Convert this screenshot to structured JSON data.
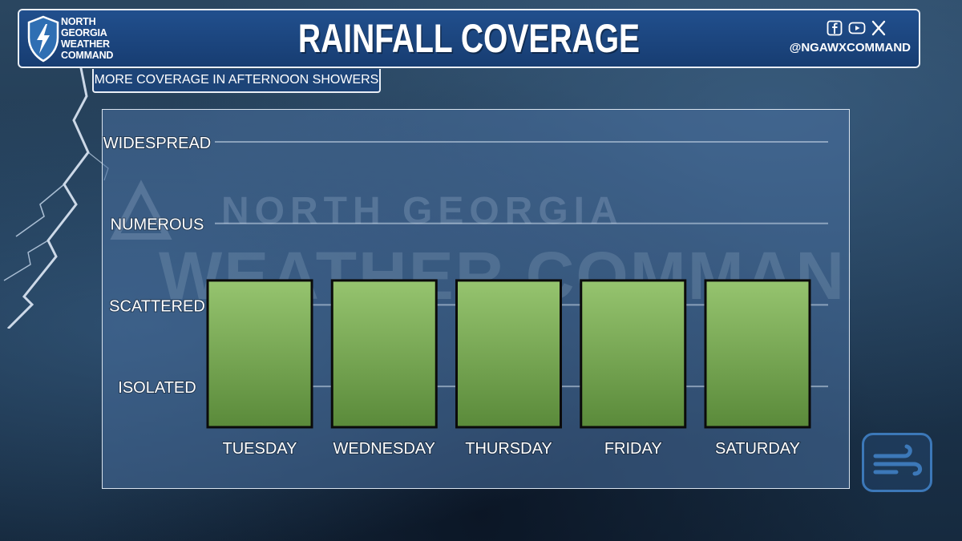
{
  "header": {
    "logo_lines": [
      "NORTH",
      "GEORGIA",
      "WEATHER",
      "COMMAND"
    ],
    "title": "RAINFALL COVERAGE",
    "social_icons": [
      "facebook-icon",
      "youtube-icon",
      "x-icon"
    ],
    "handle": "@NGAWXCOMMAND"
  },
  "subtitle": "MORE COVERAGE IN AFTERNOON SHOWERS",
  "watermark": {
    "line1": "NORTH GEORGIA",
    "line2": "WEATHER COMMAND"
  },
  "colors": {
    "header_blue": "#1d4478",
    "bar_top": "#96c46f",
    "bar_bottom": "#5a8a3a",
    "bar_border": "#0b0b0b"
  },
  "chart_data": {
    "type": "bar",
    "categories": [
      "TUESDAY",
      "WEDNESDAY",
      "THURSDAY",
      "FRIDAY",
      "SATURDAY"
    ],
    "y_levels": [
      "ISOLATED",
      "SCATTERED",
      "NUMEROUS",
      "WIDESPREAD"
    ],
    "values": [
      2.3,
      2.3,
      2.3,
      2.3,
      2.3
    ],
    "value_label": "SCATTERED",
    "ylim": [
      0.5,
      4.0
    ],
    "grid": true,
    "legend": "none"
  }
}
